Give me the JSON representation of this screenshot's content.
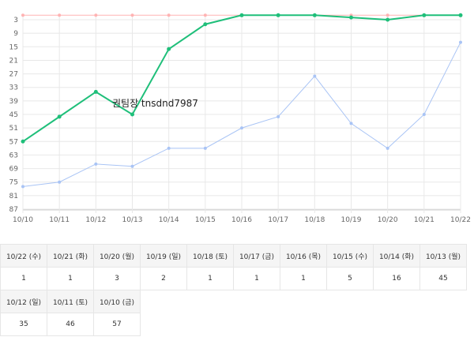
{
  "annotation": "권팀장 tnsdnd7987",
  "chart_data": {
    "type": "line",
    "categories": [
      "10/10",
      "10/11",
      "10/12",
      "10/13",
      "10/14",
      "10/15",
      "10/16",
      "10/17",
      "10/18",
      "10/19",
      "10/20",
      "10/21",
      "10/22"
    ],
    "y_ticks": [
      3,
      9,
      15,
      21,
      27,
      33,
      39,
      45,
      51,
      57,
      63,
      69,
      75,
      81,
      87
    ],
    "ylim": [
      1,
      87
    ],
    "y_reversed": true,
    "grid": true,
    "series": [
      {
        "color": "#ffb3b3",
        "values": [
          1,
          1,
          1,
          1,
          1,
          1,
          1,
          1,
          1,
          1,
          1,
          1,
          1
        ]
      },
      {
        "color": "#a9c4f5",
        "values": [
          77,
          75,
          67,
          68,
          60,
          60,
          51,
          46,
          28,
          49,
          60,
          45,
          13
        ]
      },
      {
        "color": "#1fbf7a",
        "values": [
          57,
          46,
          35,
          45,
          16,
          5,
          1,
          1,
          1,
          2,
          3,
          1,
          1
        ]
      }
    ]
  },
  "table": {
    "rows": [
      {
        "headers": [
          "10/22 (수)",
          "10/21 (화)",
          "10/20 (월)",
          "10/19 (일)",
          "10/18 (토)",
          "10/17 (금)",
          "10/16 (목)",
          "10/15 (수)",
          "10/14 (화)",
          "10/13 (월)"
        ],
        "values": [
          "1",
          "1",
          "3",
          "2",
          "1",
          "1",
          "1",
          "5",
          "16",
          "45"
        ]
      },
      {
        "headers": [
          "10/12 (일)",
          "10/11 (토)",
          "10/10 (금)"
        ],
        "values": [
          "35",
          "46",
          "57"
        ]
      }
    ]
  }
}
